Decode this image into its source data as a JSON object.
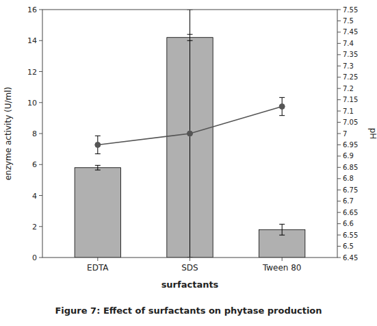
{
  "chart_data": {
    "type": "bar",
    "title": "Figure 7: Effect of surfactants on phytase production",
    "x_label": "surfactants",
    "y_label": "enzyme activity (U/ml)",
    "y2_label": "pH",
    "categories": [
      "EDTA",
      "SDS",
      "Tween 80"
    ],
    "series": [
      {
        "type": "bar",
        "color": "#b0b0b0",
        "values": [
          5.8,
          14.2,
          1.8
        ],
        "errors": [
          0.15,
          0.2,
          0.35
        ]
      },
      {
        "type": "line",
        "axis": "y2",
        "color": "#555555",
        "marker": "circle",
        "line_style": "solid",
        "values": [
          6.95,
          7.0,
          7.12
        ],
        "errors": [
          0.04,
          0.55,
          0.04
        ]
      }
    ],
    "ylim": [
      0,
      16
    ],
    "yticks": [
      0,
      2,
      4,
      6,
      8,
      10,
      12,
      14,
      16
    ],
    "y2lim": [
      6.45,
      7.55
    ],
    "y2ticks": [
      6.45,
      6.5,
      6.55,
      6.6,
      6.65,
      6.7,
      6.75,
      6.8,
      6.85,
      6.9,
      6.95,
      7,
      7.05,
      7.1,
      7.15,
      7.2,
      7.25,
      7.3,
      7.35,
      7.4,
      7.45,
      7.5,
      7.55
    ],
    "grid": false
  }
}
